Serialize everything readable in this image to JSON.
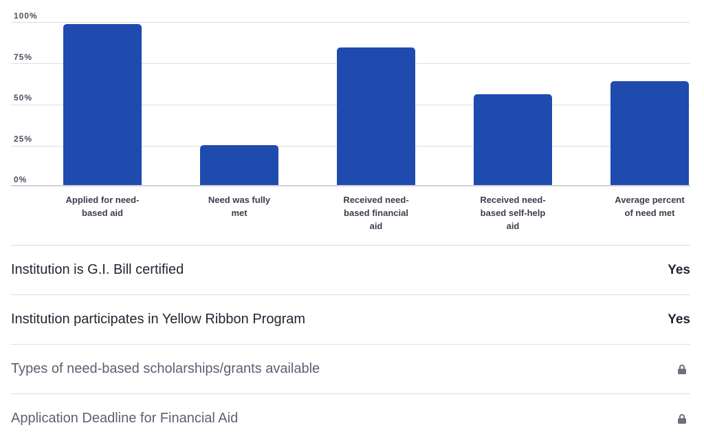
{
  "chart_data": {
    "type": "bar",
    "title": "",
    "xlabel": "",
    "ylabel": "",
    "ylim": [
      0,
      100
    ],
    "yticks": [
      "0%",
      "25%",
      "50%",
      "75%",
      "100%"
    ],
    "categories": [
      "Applied for need-based aid",
      "Need was fully met",
      "Received need-based financial aid",
      "Received need-based self-help aid",
      "Average percent of need met"
    ],
    "category_lines": [
      [
        "Applied for need-",
        "based aid"
      ],
      [
        "Need was fully",
        "met"
      ],
      [
        "Received need-",
        "based financial",
        "aid"
      ],
      [
        "Received need-",
        "based self-help",
        "aid"
      ],
      [
        "Average percent",
        "of need met"
      ]
    ],
    "values": [
      99,
      25,
      85,
      56,
      64
    ],
    "grid": true,
    "legend": null,
    "bar_color": "#1f4aae"
  },
  "rows": [
    {
      "label": "Institution is G.I. Bill certified",
      "value": "Yes",
      "locked": false
    },
    {
      "label": "Institution participates in Yellow Ribbon Program",
      "value": "Yes",
      "locked": false
    },
    {
      "label": "Types of need-based scholarships/grants available",
      "value": "",
      "locked": true,
      "icon": "lock-icon"
    },
    {
      "label": "Application Deadline for Financial Aid",
      "value": "",
      "locked": true,
      "icon": "lock-icon"
    }
  ]
}
